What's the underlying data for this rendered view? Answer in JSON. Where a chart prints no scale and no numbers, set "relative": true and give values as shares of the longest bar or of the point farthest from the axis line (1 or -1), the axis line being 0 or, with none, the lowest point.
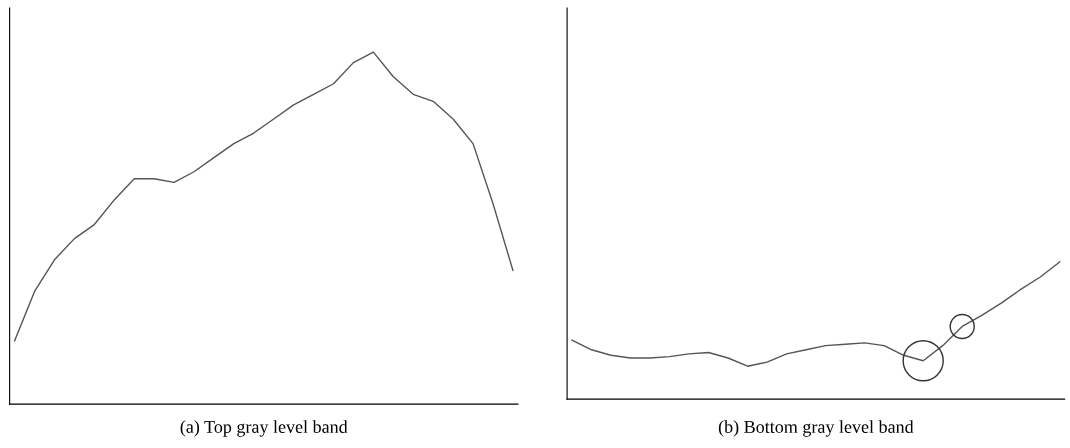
{
  "chart_data": [
    {
      "type": "line",
      "title": "(a) Top gray level band",
      "relative": true,
      "tick_labels": false,
      "categories": [
        null,
        null,
        null,
        null,
        null,
        null,
        null,
        null,
        null,
        null,
        null,
        null,
        null,
        null,
        null,
        null,
        null,
        null,
        null,
        null,
        null,
        null,
        null,
        null,
        null,
        null
      ],
      "series": [
        {
          "color": "#555555",
          "values": [
            0.18,
            0.32,
            0.41,
            0.47,
            0.51,
            0.58,
            0.64,
            0.64,
            0.63,
            0.66,
            0.7,
            0.74,
            0.77,
            0.81,
            0.85,
            0.88,
            0.91,
            0.97,
            1.0,
            0.93,
            0.88,
            0.86,
            0.81,
            0.74,
            0.57,
            0.38
          ]
        }
      ]
    },
    {
      "type": "line",
      "title": "(b) Bottom gray level band",
      "relative": true,
      "tick_labels": false,
      "categories": [
        null,
        null,
        null,
        null,
        null,
        null,
        null,
        null,
        null,
        null,
        null,
        null,
        null,
        null,
        null,
        null,
        null,
        null,
        null,
        null,
        null,
        null,
        null,
        null,
        null,
        null
      ],
      "series": [
        {
          "color": "#555555",
          "values": [
            0.43,
            0.36,
            0.32,
            0.3,
            0.3,
            0.31,
            0.33,
            0.34,
            0.3,
            0.24,
            0.27,
            0.33,
            0.36,
            0.39,
            0.4,
            0.41,
            0.39,
            0.32,
            0.28,
            0.39,
            0.53,
            0.61,
            0.7,
            0.8,
            0.89,
            1.0
          ]
        }
      ]
    }
  ]
}
